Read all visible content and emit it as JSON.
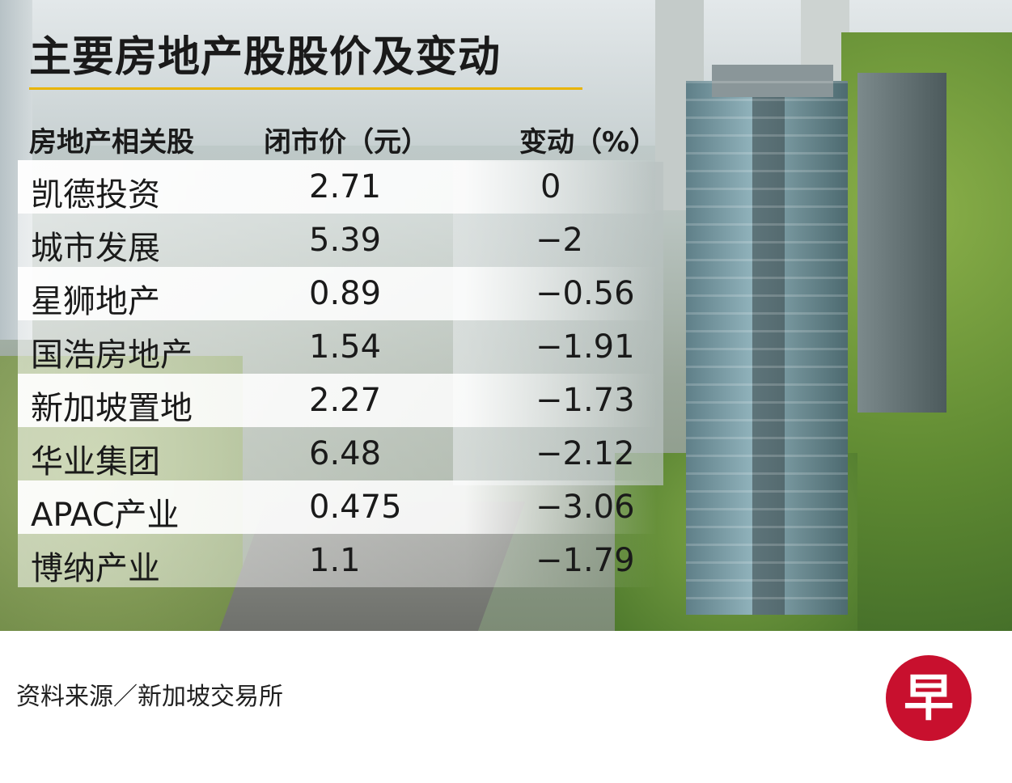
{
  "title": "主要房地产股股价及变动",
  "headers": {
    "name": "房地产相关股",
    "price": "闭市价（元）",
    "change": "变动（%）"
  },
  "rows": [
    {
      "name": "凯德投资",
      "price": "2.71",
      "change": "0"
    },
    {
      "name": "城市发展",
      "price": "5.39",
      "change": "−2"
    },
    {
      "name": "星狮地产",
      "price": "0.89",
      "change": "−0.56"
    },
    {
      "name": "国浩房地产",
      "price": "1.54",
      "change": "−1.91"
    },
    {
      "name": "新加坡置地",
      "price": "2.27",
      "change": "−1.73"
    },
    {
      "name": "华业集团",
      "price": "6.48",
      "change": "−2.12"
    },
    {
      "name": "APAC产业",
      "price": "0.475",
      "change": "−3.06"
    },
    {
      "name": "博纳产业",
      "price": "1.1",
      "change": "−1.79"
    }
  ],
  "source": "资料来源／新加坡交易所",
  "logo": {
    "text": "早",
    "color": "#c8102e"
  },
  "colors": {
    "accent_rule": "#e8b400",
    "text": "#1a1a1a"
  }
}
